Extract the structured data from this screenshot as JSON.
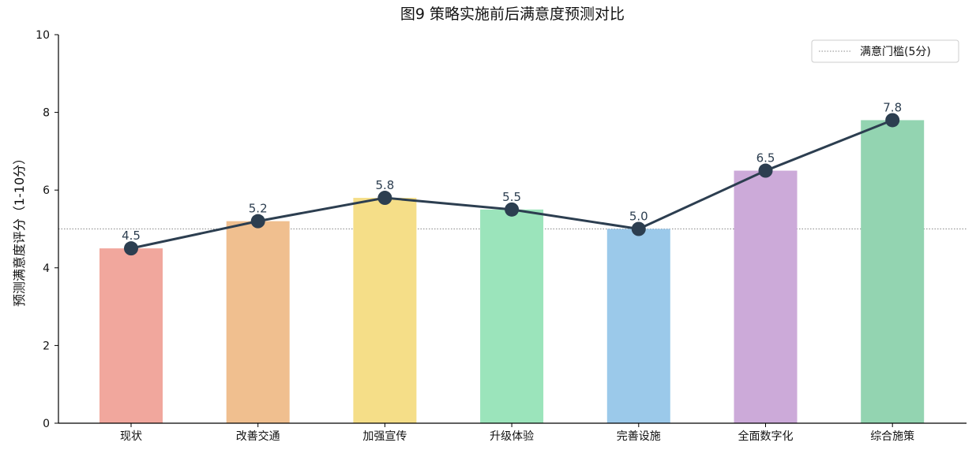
{
  "chart_data": {
    "type": "bar",
    "title": "图9 策略实施前后满意度预测对比",
    "xlabel": "",
    "ylabel": "预测满意度评分（1-10分）",
    "ylim": [
      0,
      10
    ],
    "yticks": [
      0,
      2,
      4,
      6,
      8,
      10
    ],
    "categories": [
      "现状",
      "改善交通",
      "加强宣传",
      "升级体验",
      "完善设施",
      "全面数字化",
      "综合施策"
    ],
    "values": [
      4.5,
      5.2,
      5.8,
      5.5,
      5.0,
      6.5,
      7.8
    ],
    "data_labels": [
      "4.5",
      "5.2",
      "5.8",
      "5.5",
      "5.0",
      "6.5",
      "7.8"
    ],
    "bar_colors": [
      "#f1a79d",
      "#f0bf8f",
      "#f5de88",
      "#9be4bb",
      "#9bc9ea",
      "#ccaad9",
      "#93d4b1"
    ],
    "line_color": "#2c3e50",
    "line_overlay": true,
    "threshold": {
      "value": 5,
      "label": "满意门槛(5分)",
      "color": "#888888",
      "style": "dotted"
    },
    "legend_position": "top-right",
    "grid": false
  }
}
